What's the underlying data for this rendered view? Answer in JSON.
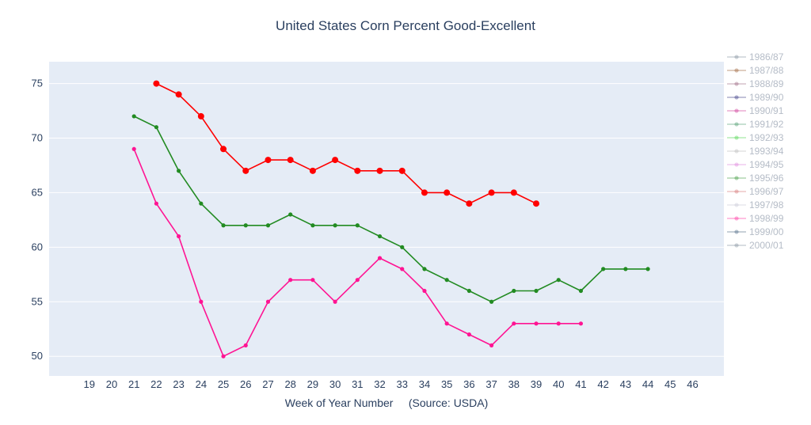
{
  "chart_data": {
    "type": "line",
    "title": "United States Corn Percent Good-Excellent",
    "xlabel": "Week of Year Number     (Source: USDA)",
    "ylabel": "",
    "xlim": [
      17.2,
      47.4
    ],
    "ylim": [
      48.2,
      77.0
    ],
    "x_ticks": [
      19,
      20,
      21,
      22,
      23,
      24,
      25,
      26,
      27,
      28,
      29,
      30,
      31,
      32,
      33,
      34,
      35,
      36,
      37,
      38,
      39,
      40,
      41,
      42,
      43,
      44,
      45,
      46
    ],
    "y_ticks": [
      50,
      55,
      60,
      65,
      70,
      75
    ],
    "grid": true,
    "legend_position": "right",
    "series": [
      {
        "color": "#ff0000",
        "marker_size": 4,
        "x": [
          22,
          23,
          24,
          25,
          26,
          27,
          28,
          29,
          30,
          31,
          32,
          33,
          34,
          35,
          36,
          37,
          38,
          39
        ],
        "values": [
          75,
          74,
          72,
          69,
          67,
          68,
          68,
          67,
          68,
          67,
          67,
          67,
          65,
          65,
          64,
          65,
          65,
          64
        ]
      },
      {
        "color": "#228b22",
        "marker_size": 2.6,
        "x": [
          21,
          22,
          23,
          24,
          25,
          26,
          27,
          28,
          29,
          30,
          31,
          32,
          33,
          34,
          35,
          36,
          37,
          38,
          39,
          40,
          41,
          42,
          43,
          44
        ],
        "values": [
          72,
          71,
          67,
          64,
          62,
          62,
          62,
          63,
          62,
          62,
          62,
          61,
          60,
          58,
          57,
          56,
          55,
          56,
          56,
          57,
          56,
          58,
          58,
          58
        ]
      },
      {
        "color": "#ff1493",
        "marker_size": 2.6,
        "x": [
          21,
          22,
          23,
          24,
          25,
          26,
          27,
          28,
          29,
          30,
          31,
          32,
          33,
          34,
          35,
          36,
          37,
          38,
          39,
          40,
          41
        ],
        "values": [
          69,
          64,
          61,
          55,
          50,
          51,
          55,
          57,
          57,
          55,
          57,
          59,
          58,
          56,
          53,
          52,
          51,
          53,
          53,
          53,
          53
        ]
      }
    ],
    "legend": [
      {
        "name": "1986/87",
        "color": "#708090"
      },
      {
        "name": "1987/88",
        "color": "#8b4513"
      },
      {
        "name": "1988/89",
        "color": "#8b4c6d"
      },
      {
        "name": "1989/90",
        "color": "#191970"
      },
      {
        "name": "1990/91",
        "color": "#c71585"
      },
      {
        "name": "1991/92",
        "color": "#2e8b57"
      },
      {
        "name": "1992/93",
        "color": "#32cd32"
      },
      {
        "name": "1993/94",
        "color": "#b0b0b0"
      },
      {
        "name": "1994/95",
        "color": "#da70d6"
      },
      {
        "name": "1995/96",
        "color": "#228b22"
      },
      {
        "name": "1996/97",
        "color": "#cd5c5c"
      },
      {
        "name": "1997/98",
        "color": "#c0c0d0"
      },
      {
        "name": "1998/99",
        "color": "#ff1493"
      },
      {
        "name": "1999/00",
        "color": "#2f4f6f"
      },
      {
        "name": "2000/01",
        "color": "#708090"
      }
    ]
  }
}
